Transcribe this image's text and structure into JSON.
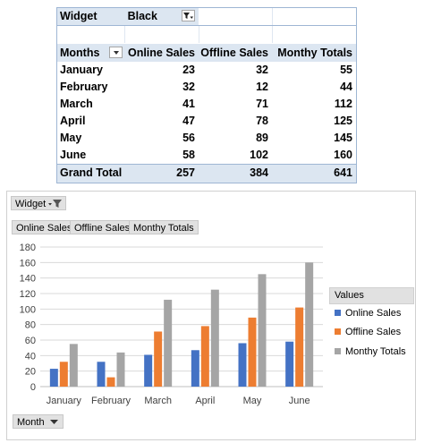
{
  "pivot": {
    "filter_field": "Widget",
    "filter_value": "Black",
    "row_field": "Months",
    "columns": [
      "Online Sales",
      "Offline Sales",
      "Monthy Totals"
    ],
    "rows": [
      {
        "label": "January",
        "values": [
          "23",
          "32",
          "55"
        ]
      },
      {
        "label": "February",
        "values": [
          "32",
          "12",
          "44"
        ]
      },
      {
        "label": "March",
        "values": [
          "41",
          "71",
          "112"
        ]
      },
      {
        "label": "April",
        "values": [
          "47",
          "78",
          "125"
        ]
      },
      {
        "label": "May",
        "values": [
          "56",
          "89",
          "145"
        ]
      },
      {
        "label": "June",
        "values": [
          "58",
          "102",
          "160"
        ]
      }
    ],
    "grand_total": {
      "label": "Grand Total",
      "values": [
        "257",
        "384",
        "641"
      ]
    }
  },
  "chart": {
    "filter_button": "Widget",
    "value_buttons": [
      "Online Sales",
      "Offline Sales",
      "Monthy Totals"
    ],
    "axis_button": "Month",
    "legend_title": "Values",
    "colors": {
      "online": "#4472c4",
      "offline": "#ed7d31",
      "totals": "#a5a5a5"
    }
  },
  "chart_data": {
    "type": "bar",
    "categories": [
      "January",
      "February",
      "March",
      "April",
      "May",
      "June"
    ],
    "series": [
      {
        "name": "Online Sales",
        "values": [
          23,
          32,
          41,
          47,
          56,
          58
        ]
      },
      {
        "name": "Offline Sales",
        "values": [
          32,
          12,
          71,
          78,
          89,
          102
        ]
      },
      {
        "name": "Monthy Totals",
        "values": [
          55,
          44,
          112,
          125,
          145,
          160
        ]
      }
    ],
    "ylim": [
      0,
      180
    ],
    "yticks": [
      "0",
      "20",
      "40",
      "60",
      "80",
      "100",
      "120",
      "140",
      "160",
      "180"
    ],
    "grid": true,
    "legend": "right"
  }
}
